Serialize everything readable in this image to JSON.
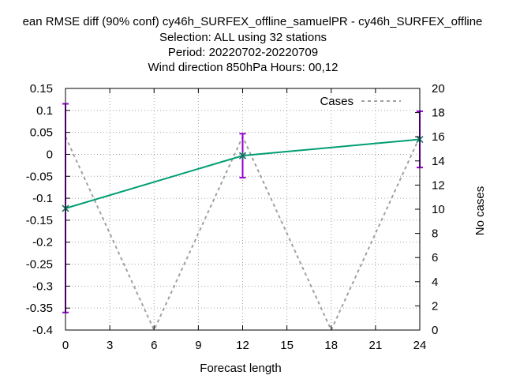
{
  "chart_data": {
    "type": "line",
    "title_lines": [
      "ean RMSE diff (90% conf) cy46h_SURFEX_offline_samuelPR - cy46h_SURFEX_offline",
      "Selection: ALL using    32 stations",
      "Period: 20220702-20220709",
      "Wind direction 850hPa   Hours:  00,12"
    ],
    "xlabel": "Forecast length",
    "ylabel": "",
    "y2label": "No cases",
    "xlim": [
      0,
      24
    ],
    "ylim": [
      -0.4,
      0.15
    ],
    "y2lim": [
      0,
      20
    ],
    "xticks": [
      "0",
      "3",
      "6",
      "9",
      "12",
      "15",
      "18",
      "21",
      "24"
    ],
    "yticks": [
      "0.15",
      "0.1",
      "0.05",
      "0",
      "-0.05",
      "-0.1",
      "-0.15",
      "-0.2",
      "-0.25",
      "-0.3",
      "-0.35",
      "-0.4"
    ],
    "y2ticks": [
      "20",
      "18",
      "16",
      "14",
      "12",
      "10",
      "8",
      "6",
      "4",
      "2",
      "0"
    ],
    "grid": true,
    "legend_position": "top-right",
    "series": [
      {
        "name": "",
        "axis": "left",
        "color": "#009e73",
        "errorbar_color": "#9400d3",
        "x": [
          0,
          12,
          24
        ],
        "y": [
          -0.123,
          -0.003,
          0.034
        ],
        "err_low": [
          -0.36,
          -0.053,
          -0.03
        ],
        "err_high": [
          0.115,
          0.047,
          0.098
        ]
      },
      {
        "name": "Cases",
        "axis": "right",
        "style": "dashed",
        "color": "#a0a0a0",
        "x": [
          0,
          6,
          12,
          18,
          24
        ],
        "y": [
          16,
          0,
          16,
          0,
          16
        ]
      }
    ]
  }
}
